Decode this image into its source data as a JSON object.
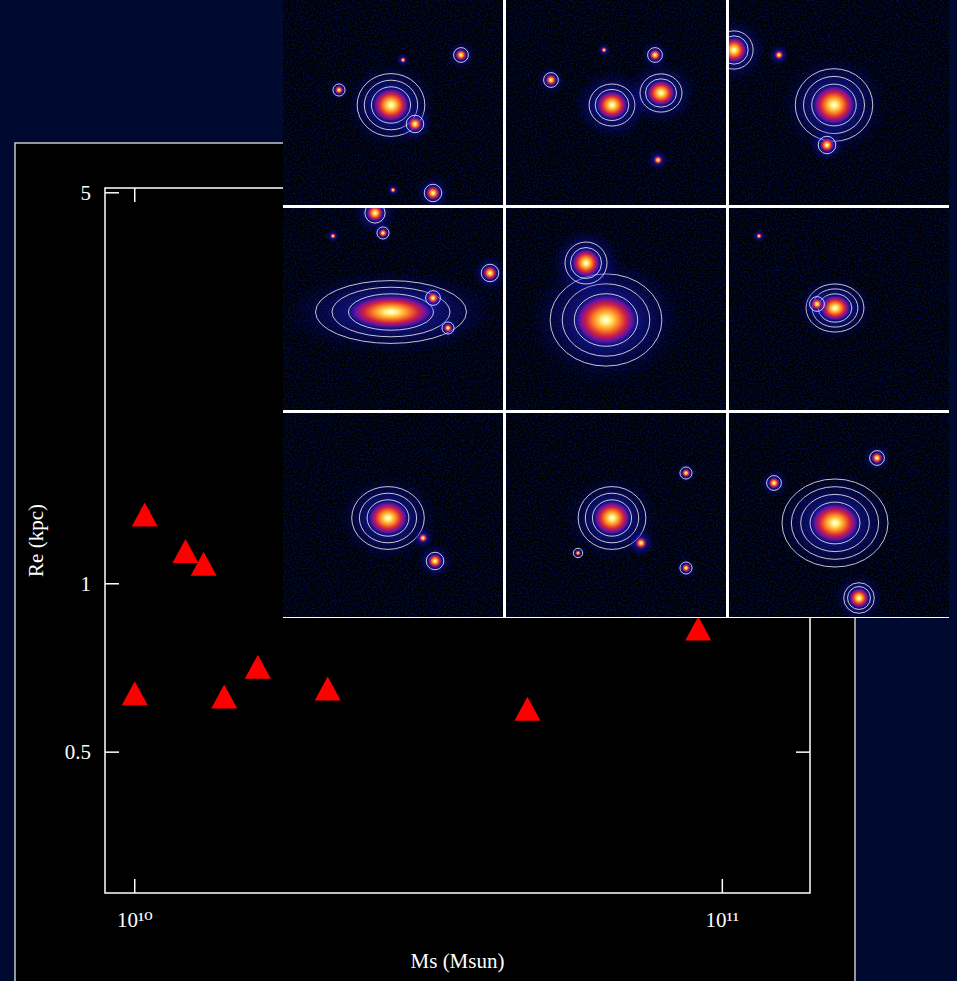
{
  "chart_data": {
    "type": "scatter",
    "xlabel": "Ms (Msun)",
    "ylabel": "Re (kpc)",
    "x": [
      10000000000,
      10400000000,
      12200000000,
      13100000000,
      14200000000,
      16200000000,
      21300000000,
      46600000000,
      91000000000
    ],
    "values": [
      0.637,
      1.33,
      1.145,
      1.086,
      0.629,
      0.711,
      0.65,
      0.598,
      0.832
    ],
    "log": true,
    "xlim": [
      8900000000,
      141000000000
    ],
    "ylim": [
      0.28,
      5.1
    ],
    "xticks": [
      {
        "value": 10000000000,
        "label": "10¹⁰"
      },
      {
        "value": 100000000000,
        "label": "10¹¹"
      }
    ],
    "yticks": [
      5,
      1,
      0.5
    ],
    "color": "#ff0000",
    "marker": "triangle",
    "grid": false
  }
}
